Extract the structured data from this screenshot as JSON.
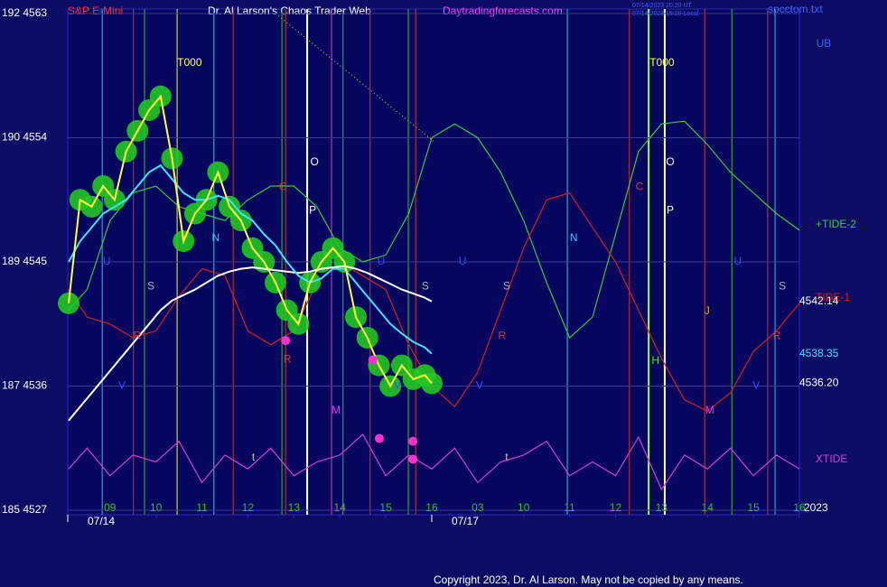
{
  "chart_data": {
    "type": "line",
    "title": "Dr. Al Larson's Chaos Trader Web",
    "instrument": "S&P E-Mini",
    "website": "Daytradingforecasts.com",
    "timestamps": [
      "07/14/2023 20:20 UT",
      "07/14/2023 15:20 Local"
    ],
    "file": "spcctom.txt",
    "copyright": "Copyright 2023, Dr. Al Larson. May not be copied by any means.",
    "year": "2023",
    "xlim": [
      -0.92,
      15
    ],
    "ylim": [
      4527,
      4563
    ],
    "yticks": [
      {
        "value": 4563,
        "label": "192 4563"
      },
      {
        "value": 4554,
        "label": "190 4554"
      },
      {
        "value": 4545,
        "label": "189 4545"
      },
      {
        "value": 4536,
        "label": "187 4536"
      },
      {
        "value": 4527,
        "label": "185 4527"
      }
    ],
    "xticks": [
      {
        "value": 0,
        "label": "09"
      },
      {
        "value": 1,
        "label": "10"
      },
      {
        "value": 2,
        "label": "11"
      },
      {
        "value": 3,
        "label": "12"
      },
      {
        "value": 4,
        "label": "13"
      },
      {
        "value": 5,
        "label": "14"
      },
      {
        "value": 6,
        "label": "15"
      },
      {
        "value": 7,
        "label": "16"
      },
      {
        "value": 8,
        "label": "03"
      },
      {
        "value": 9,
        "label": "10"
      },
      {
        "value": 10,
        "label": "11"
      },
      {
        "value": 11,
        "label": "12"
      },
      {
        "value": 12,
        "label": "13"
      },
      {
        "value": 13,
        "label": "14"
      },
      {
        "value": 14,
        "label": "15"
      },
      {
        "value": 15,
        "label": "16"
      }
    ],
    "dates": [
      {
        "value": -0.92,
        "label": "07/14"
      },
      {
        "value": 7.0,
        "label": "07/17"
      }
    ],
    "grid": true,
    "series": [
      {
        "name": "+TIDE-2",
        "color": "#3cc83c",
        "x": [
          -0.9,
          -0.5,
          0,
          0.5,
          1,
          1.5,
          2,
          2.5,
          3,
          3.5,
          4,
          4.5,
          5,
          5.5,
          6,
          6.5,
          7,
          7.5,
          8,
          8.5,
          9,
          9.5,
          10,
          10.5,
          11,
          11.5,
          12,
          12.5,
          13,
          13.5,
          14,
          14.5,
          15
        ],
        "values": [
          4541.5,
          4543,
          4548,
          4550,
          4550.5,
          4549,
          4548.5,
          4548,
          4549.5,
          4550.5,
          4550.5,
          4549,
          4546,
          4545,
          4545.5,
          4548.5,
          4554,
          4555,
          4554,
          4551.5,
          4548,
          4543.5,
          4539.5,
          4541,
          4547,
          4553,
          4555,
          4555.2,
          4553.5,
          4551.5,
          4550,
          4548.5,
          4547.3
        ]
      },
      {
        "name": "TIDE-1",
        "color": "#d02020",
        "x": [
          -0.9,
          -0.5,
          0,
          0.5,
          1,
          1.5,
          2,
          2.5,
          3,
          3.5,
          4,
          4.5,
          5,
          5.5,
          6,
          6.5,
          7,
          7.5,
          8,
          8.5,
          9,
          9.5,
          10,
          10.5,
          11,
          11.5,
          12,
          12.5,
          13,
          13.5,
          14,
          14.5,
          15
        ],
        "values": [
          4543,
          4541,
          4540.5,
          4539.5,
          4540,
          4542.5,
          4544.5,
          4544,
          4540,
          4539,
          4540,
          4543.5,
          4545,
          4544,
          4543,
          4539,
          4536,
          4534.5,
          4537,
          4541.5,
          4546,
          4549.5,
          4550,
          4547.5,
          4545,
          4541.5,
          4538,
          4535,
          4534.2,
          4535.5,
          4538.5,
          4540,
          4542
        ]
      },
      {
        "name": "XTIDE",
        "color": "#d040d0",
        "x": [
          -0.9,
          -0.5,
          0,
          0.5,
          1,
          1.5,
          2,
          2.5,
          3,
          3.5,
          4,
          4.5,
          5,
          5.5,
          6,
          6.5,
          7,
          7.5,
          8,
          8.5,
          9,
          9.5,
          10,
          10.5,
          11,
          11.5,
          12,
          12.5,
          13,
          13.5,
          14,
          14.5,
          15
        ],
        "values": [
          4530,
          4531.5,
          4529.5,
          4531,
          4530.5,
          4532,
          4529,
          4531,
          4530,
          4531.5,
          4529.5,
          4530.5,
          4531,
          4532.5,
          4529.5,
          4531,
          4530,
          4531.5,
          4529,
          4530.5,
          4531,
          4532,
          4529.5,
          4530.5,
          4529.5,
          4532.3,
          4528.5,
          4531,
          4530,
          4531.5,
          4529.5,
          4531,
          4530
        ]
      },
      {
        "color": "#ffff40",
        "bubble_color": "#22c822",
        "x": [
          -0.9,
          -0.65,
          -0.4,
          -0.15,
          0.1,
          0.35,
          0.6,
          0.85,
          1.1,
          1.35,
          1.6,
          1.85,
          2.1,
          2.35,
          2.6,
          2.85,
          3.1,
          3.35,
          3.6,
          3.85,
          4.1,
          4.35,
          4.6,
          4.85,
          5.1,
          5.35,
          5.6,
          5.85,
          6.1,
          6.35,
          6.6,
          6.85,
          7.0
        ],
        "values": [
          4542,
          4549.5,
          4549,
          4550.5,
          4549.5,
          4553,
          4554.5,
          4556,
          4557,
          4552.5,
          4546.5,
          4548.5,
          4549.5,
          4551.5,
          4549,
          4548,
          4546,
          4545,
          4543.5,
          4541.5,
          4540.5,
          4543.5,
          4545,
          4546,
          4545,
          4541,
          4539.5,
          4537.5,
          4536,
          4537.5,
          4536.5,
          4536.8,
          4536.2
        ],
        "end_value": {
          "value": 4536.2,
          "label": "4536.20"
        },
        "end_color": "#ffffff"
      },
      {
        "color": "#40e0ff",
        "x": [
          -0.9,
          -0.65,
          -0.4,
          -0.15,
          0.1,
          0.35,
          0.6,
          0.85,
          1.1,
          1.35,
          1.6,
          1.85,
          2.1,
          2.35,
          2.6,
          2.85,
          3.1,
          3.35,
          3.6,
          3.85,
          4.1,
          4.35,
          4.6,
          4.85,
          5.1,
          5.35,
          5.6,
          5.85,
          6.1,
          6.35,
          6.6,
          6.85,
          7.0
        ],
        "values": [
          4545,
          4546.5,
          4547.5,
          4548.5,
          4549,
          4549.5,
          4550.5,
          4551.5,
          4552,
          4551,
          4550,
          4549.5,
          4549.5,
          4549.8,
          4549.5,
          4548.5,
          4548,
          4547,
          4546.2,
          4545,
          4544,
          4543.5,
          4543.8,
          4544.5,
          4544.5,
          4543.5,
          4542.5,
          4541.5,
          4540.5,
          4539.8,
          4539.2,
          4538.8,
          4538.35
        ],
        "end_value": 4538.35,
        "end_color": "#40e0ff"
      },
      {
        "color": "#ffffff",
        "x": [
          -0.9,
          -0.65,
          -0.4,
          -0.15,
          0.1,
          0.35,
          0.6,
          0.85,
          1.1,
          1.35,
          1.6,
          1.85,
          2.1,
          2.35,
          2.6,
          2.85,
          3.1,
          3.35,
          3.6,
          3.85,
          4.1,
          4.35,
          4.6,
          4.85,
          5.1,
          5.35,
          5.6,
          5.85,
          6.1,
          6.35,
          6.6,
          6.85,
          7.0
        ],
        "values": [
          4533.5,
          4534.5,
          4535.5,
          4536.5,
          4537.5,
          4538.5,
          4539.5,
          4540.5,
          4541.5,
          4542.2,
          4542.6,
          4543,
          4543.5,
          4544,
          4544.3,
          4544.5,
          4544.6,
          4544.5,
          4544.4,
          4544.3,
          4544.2,
          4544.3,
          4544.5,
          4544.6,
          4544.7,
          4544.5,
          4544.2,
          4543.8,
          4543.4,
          4543,
          4542.7,
          4542.4,
          4542.14
        ],
        "end_value": 4542.14,
        "end_color": "#ffffff"
      }
    ],
    "turn_points": {
      "color": "#ff30d0",
      "x": [
        3.82,
        5.72,
        5.86,
        6.59,
        6.59
      ],
      "values": [
        4539.3,
        4537.9,
        4532.2,
        4532.0,
        4530.7
      ]
    },
    "vertical_lines": [
      {
        "x": -0.17,
        "color": "#30c0e0"
      },
      {
        "x": 0.51,
        "color": "#d03030"
      },
      {
        "x": 0.75,
        "color": "#30c030"
      },
      {
        "x": 1.46,
        "color": "#f0f060"
      },
      {
        "x": 2.26,
        "color": "#30c0e0"
      },
      {
        "x": 2.68,
        "color": "#d03030"
      },
      {
        "x": 3.74,
        "color": "#30c030"
      },
      {
        "x": 3.82,
        "color": "#d03030"
      },
      {
        "x": 4.29,
        "color": "#ffffff"
      },
      {
        "x": 4.82,
        "color": "#d040d0"
      },
      {
        "x": 5.07,
        "color": "#30c030"
      },
      {
        "x": 5.66,
        "color": "#d03030"
      },
      {
        "x": 6.49,
        "color": "#30c030"
      },
      {
        "x": 6.65,
        "color": "#d03030"
      },
      {
        "x": 9.95,
        "color": "#30c0e0"
      },
      {
        "x": 11.3,
        "color": "#d03030"
      },
      {
        "x": 11.72,
        "color": "#a0ff20"
      },
      {
        "x": 12.07,
        "color": "#ffffff"
      },
      {
        "x": 12.94,
        "color": "#d03030"
      },
      {
        "x": 13.53,
        "color": "#30c030"
      },
      {
        "x": 14.31,
        "color": "#d03030"
      },
      {
        "x": 14.47,
        "color": "#30c0e0"
      }
    ],
    "annotations": [
      {
        "text": "T000",
        "x": 1.73,
        "y": 4559.4,
        "color": "#ffff60"
      },
      {
        "text": "T000",
        "x": 12.01,
        "y": 4559.4,
        "color": "#ffff60"
      },
      {
        "text": "O",
        "x": 4.45,
        "y": 4552.2,
        "color": "#ffffff"
      },
      {
        "text": "O",
        "x": 12.19,
        "y": 4552.2,
        "color": "#ffffff"
      },
      {
        "text": "P",
        "x": 4.41,
        "y": 4548.7,
        "color": "#ffffff"
      },
      {
        "text": "P",
        "x": 12.19,
        "y": 4548.7,
        "color": "#ffffff"
      },
      {
        "text": "C",
        "x": 3.76,
        "y": 4550.4,
        "color": "#e03030"
      },
      {
        "text": "C",
        "x": 11.52,
        "y": 4550.4,
        "color": "#e03030"
      },
      {
        "text": "N",
        "x": 2.3,
        "y": 4546.7,
        "color": "#40c0ff"
      },
      {
        "text": "N",
        "x": 10.09,
        "y": 4546.7,
        "color": "#40c0ff"
      },
      {
        "text": "U",
        "x": -0.07,
        "y": 4545.0,
        "color": "#3050ff"
      },
      {
        "text": "U",
        "x": 5.9,
        "y": 4545.0,
        "color": "#3050ff"
      },
      {
        "text": "U",
        "x": 7.67,
        "y": 4545.0,
        "color": "#3050ff"
      },
      {
        "text": "U",
        "x": 13.66,
        "y": 4545.0,
        "color": "#3050ff"
      },
      {
        "text": "S",
        "x": 0.89,
        "y": 4543.2,
        "color": "#b0b0c0"
      },
      {
        "text": "S",
        "x": 6.86,
        "y": 4543.2,
        "color": "#b0b0c0"
      },
      {
        "text": "S",
        "x": 8.63,
        "y": 4543.2,
        "color": "#b0b0c0"
      },
      {
        "text": "S",
        "x": 14.63,
        "y": 4543.2,
        "color": "#b0b0c0"
      },
      {
        "text": "R",
        "x": 0.59,
        "y": 4539.6,
        "color": "#e03030"
      },
      {
        "text": "R",
        "x": 3.86,
        "y": 4537.9,
        "color": "#e03030"
      },
      {
        "text": "R",
        "x": 8.53,
        "y": 4539.6,
        "color": "#e03030"
      },
      {
        "text": "R",
        "x": 14.51,
        "y": 4539.6,
        "color": "#e03030"
      },
      {
        "text": "M",
        "x": 4.92,
        "y": 4534.2,
        "color": "#e040e0"
      },
      {
        "text": "M",
        "x": 13.05,
        "y": 4534.2,
        "color": "#e040e0"
      },
      {
        "text": "V",
        "x": 0.26,
        "y": 4536.0,
        "color": "#3050ff"
      },
      {
        "text": "V",
        "x": 6.25,
        "y": 4536.0,
        "color": "#3050ff"
      },
      {
        "text": "V",
        "x": 8.04,
        "y": 4536.0,
        "color": "#3050ff"
      },
      {
        "text": "V",
        "x": 14.06,
        "y": 4536.0,
        "color": "#3050ff"
      },
      {
        "text": "H",
        "x": 11.87,
        "y": 4537.8,
        "color": "#40e040"
      },
      {
        "text": "J",
        "x": 12.99,
        "y": 4541.4,
        "color": "#c0c040"
      },
      {
        "text": "t",
        "x": 3.12,
        "y": 4530.8,
        "color": "#c0c0c0"
      },
      {
        "text": "t",
        "x": 8.63,
        "y": 4530.8,
        "color": "#c0c0c0"
      },
      {
        "text": "UB",
        "x": 15.53,
        "y": 4560.8,
        "color": "#4060ff"
      }
    ]
  }
}
